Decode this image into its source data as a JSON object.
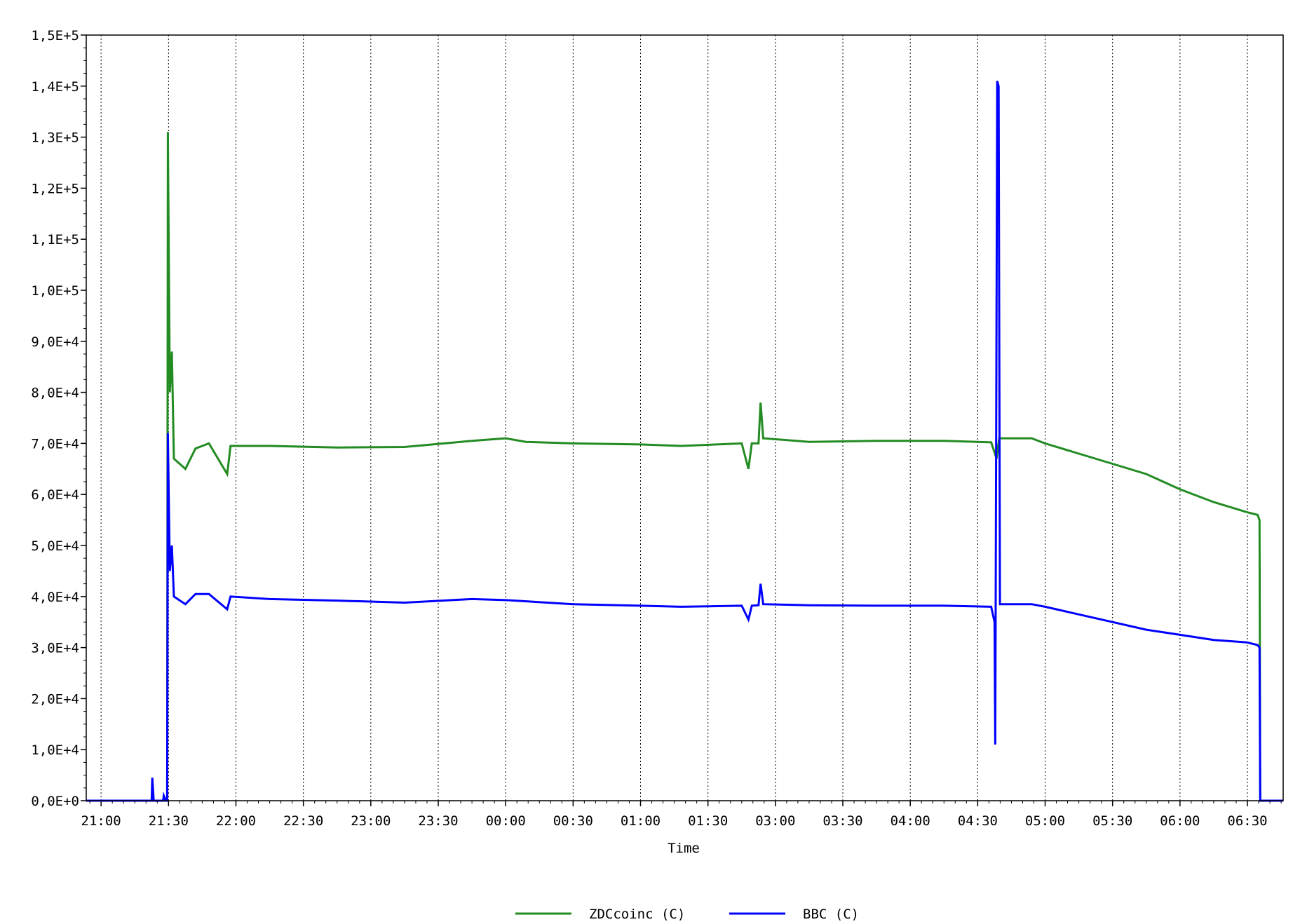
{
  "chart_data": {
    "type": "line",
    "xlabel": "Time",
    "ylabel": "",
    "x_ticks": [
      "21:00",
      "21:30",
      "22:00",
      "22:30",
      "23:00",
      "23:30",
      "00:00",
      "00:30",
      "01:00",
      "01:30",
      "03:00",
      "03:30",
      "04:00",
      "04:30",
      "05:00",
      "05:30",
      "06:00",
      "06:30"
    ],
    "y_ticks": [
      "0,0E+0",
      "1,0E+4",
      "2,0E+4",
      "3,0E+4",
      "4,0E+4",
      "5,0E+4",
      "6,0E+4",
      "7,0E+4",
      "8,0E+4",
      "9,0E+4",
      "1,0E+5",
      "1,1E+5",
      "1,2E+5",
      "1,3E+5",
      "1,4E+5",
      "1,5E+5"
    ],
    "ylim": [
      0,
      150000
    ],
    "xlim": [
      -0.22,
      17.53
    ],
    "grid": "vertical dotted",
    "legend_position": "bottom-center",
    "series": [
      {
        "name": "ZDCcoinc (C)",
        "color": "#228B22",
        "points": [
          [
            -0.22,
            0
          ],
          [
            0.72,
            0
          ],
          [
            0.98,
            0
          ],
          [
            0.99,
            131000
          ],
          [
            1.02,
            80000
          ],
          [
            1.05,
            88000
          ],
          [
            1.08,
            67000
          ],
          [
            1.25,
            65000
          ],
          [
            1.4,
            69000
          ],
          [
            1.6,
            70000
          ],
          [
            1.87,
            64000
          ],
          [
            1.92,
            69500
          ],
          [
            2.5,
            69500
          ],
          [
            3.5,
            69200
          ],
          [
            4.5,
            69300
          ],
          [
            5.5,
            70500
          ],
          [
            6.0,
            71000
          ],
          [
            6.3,
            70300
          ],
          [
            7.0,
            70000
          ],
          [
            8.0,
            69800
          ],
          [
            8.6,
            69500
          ],
          [
            9.5,
            70000
          ],
          [
            9.6,
            65000
          ],
          [
            9.65,
            70000
          ],
          [
            9.75,
            70000
          ],
          [
            9.78,
            78000
          ],
          [
            9.82,
            71000
          ],
          [
            10.5,
            70300
          ],
          [
            11.5,
            70500
          ],
          [
            12.5,
            70500
          ],
          [
            13.2,
            70200
          ],
          [
            13.28,
            67000
          ],
          [
            13.32,
            71000
          ],
          [
            13.8,
            71000
          ],
          [
            14.0,
            70000
          ],
          [
            14.5,
            68000
          ],
          [
            15.0,
            66000
          ],
          [
            15.5,
            64000
          ],
          [
            16.0,
            61000
          ],
          [
            16.5,
            58500
          ],
          [
            17.0,
            56500
          ],
          [
            17.15,
            56000
          ],
          [
            17.18,
            55000
          ],
          [
            17.19,
            0
          ],
          [
            17.53,
            0
          ]
        ]
      },
      {
        "name": "BBC (C)",
        "color": "#0000FF",
        "points": [
          [
            -0.22,
            0
          ],
          [
            0.5,
            0
          ],
          [
            0.75,
            0
          ],
          [
            0.76,
            4500
          ],
          [
            0.78,
            0
          ],
          [
            0.92,
            0
          ],
          [
            0.93,
            1000
          ],
          [
            0.96,
            0
          ],
          [
            0.98,
            0
          ],
          [
            0.99,
            72000
          ],
          [
            1.02,
            45000
          ],
          [
            1.05,
            50000
          ],
          [
            1.08,
            40000
          ],
          [
            1.25,
            38500
          ],
          [
            1.4,
            40500
          ],
          [
            1.6,
            40500
          ],
          [
            1.87,
            37500
          ],
          [
            1.92,
            40000
          ],
          [
            2.5,
            39500
          ],
          [
            3.5,
            39200
          ],
          [
            4.5,
            38800
          ],
          [
            5.5,
            39500
          ],
          [
            6.0,
            39300
          ],
          [
            7.0,
            38500
          ],
          [
            8.0,
            38200
          ],
          [
            8.6,
            38000
          ],
          [
            9.5,
            38200
          ],
          [
            9.6,
            35500
          ],
          [
            9.65,
            38200
          ],
          [
            9.75,
            38300
          ],
          [
            9.78,
            42500
          ],
          [
            9.82,
            38500
          ],
          [
            10.5,
            38300
          ],
          [
            11.5,
            38200
          ],
          [
            12.5,
            38200
          ],
          [
            13.2,
            38000
          ],
          [
            13.25,
            35000
          ],
          [
            13.26,
            11000
          ],
          [
            13.29,
            141000
          ],
          [
            13.31,
            140000
          ],
          [
            13.33,
            38500
          ],
          [
            13.8,
            38500
          ],
          [
            14.0,
            38000
          ],
          [
            14.5,
            36500
          ],
          [
            15.0,
            35000
          ],
          [
            15.5,
            33500
          ],
          [
            16.0,
            32500
          ],
          [
            16.5,
            31500
          ],
          [
            17.0,
            31000
          ],
          [
            17.15,
            30500
          ],
          [
            17.18,
            30000
          ],
          [
            17.19,
            0
          ],
          [
            17.53,
            0
          ]
        ]
      }
    ]
  }
}
